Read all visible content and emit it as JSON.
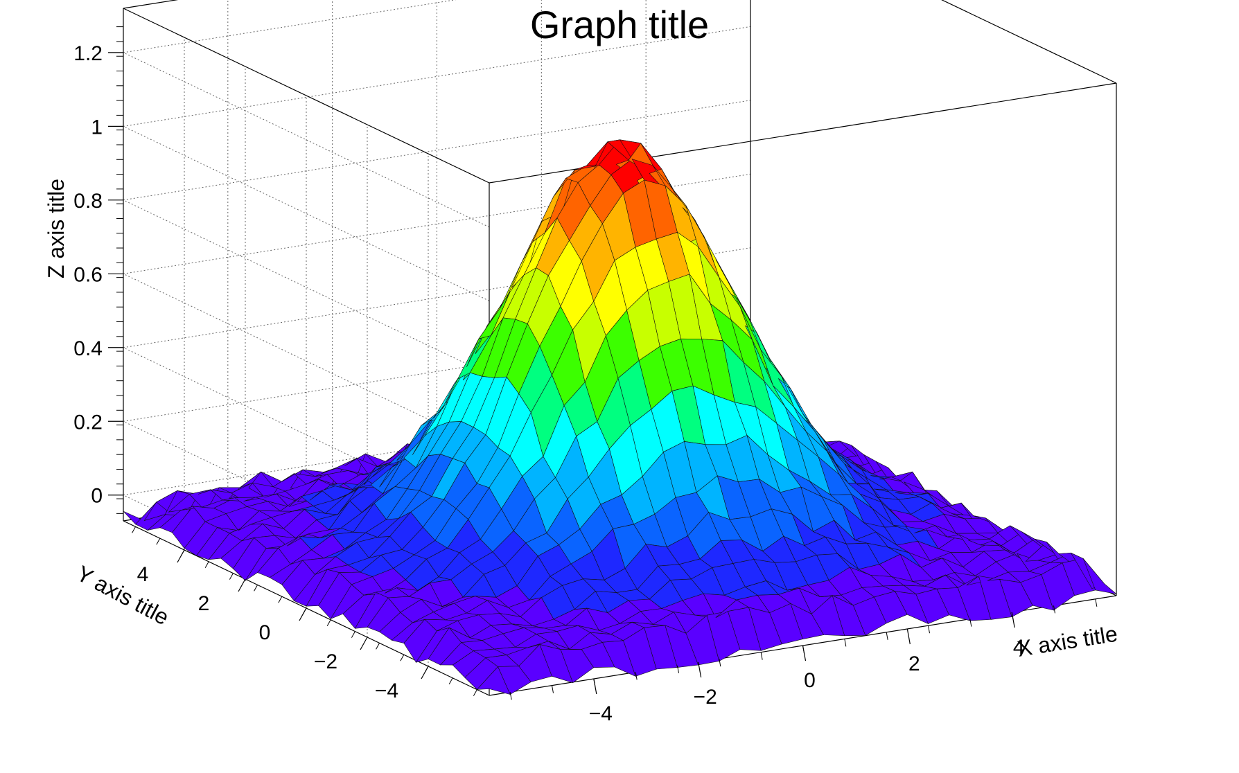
{
  "chart_data": {
    "type": "surface",
    "title": "Graph title",
    "xlabel": "X axis title",
    "ylabel": "Y axis title",
    "zlabel": "Z axis title",
    "xlim": [
      -6,
      6
    ],
    "ylim": [
      -6,
      6
    ],
    "zlim": [
      -0.07,
      1.32
    ],
    "x_ticks": [
      "−4",
      "−2",
      "0",
      "2",
      "4"
    ],
    "y_ticks": [
      "−4",
      "−2",
      "0",
      "2",
      "4"
    ],
    "z_ticks": [
      "0",
      "0.2",
      "0.4",
      "0.6",
      "0.8",
      "1",
      "1.2"
    ],
    "grid": true,
    "surface": {
      "function": "exp(-(x^2+y^2)/8) with random noise",
      "peak_value": 1.05,
      "peak_at": [
        0,
        0
      ],
      "grid_points": 30
    },
    "palette": [
      "#5a00ff",
      "#1e28ff",
      "#0a64ff",
      "#00b4ff",
      "#00ffff",
      "#00ff80",
      "#3cff00",
      "#c8ff00",
      "#ffff00",
      "#ffb400",
      "#ff6400",
      "#ff0000"
    ]
  }
}
